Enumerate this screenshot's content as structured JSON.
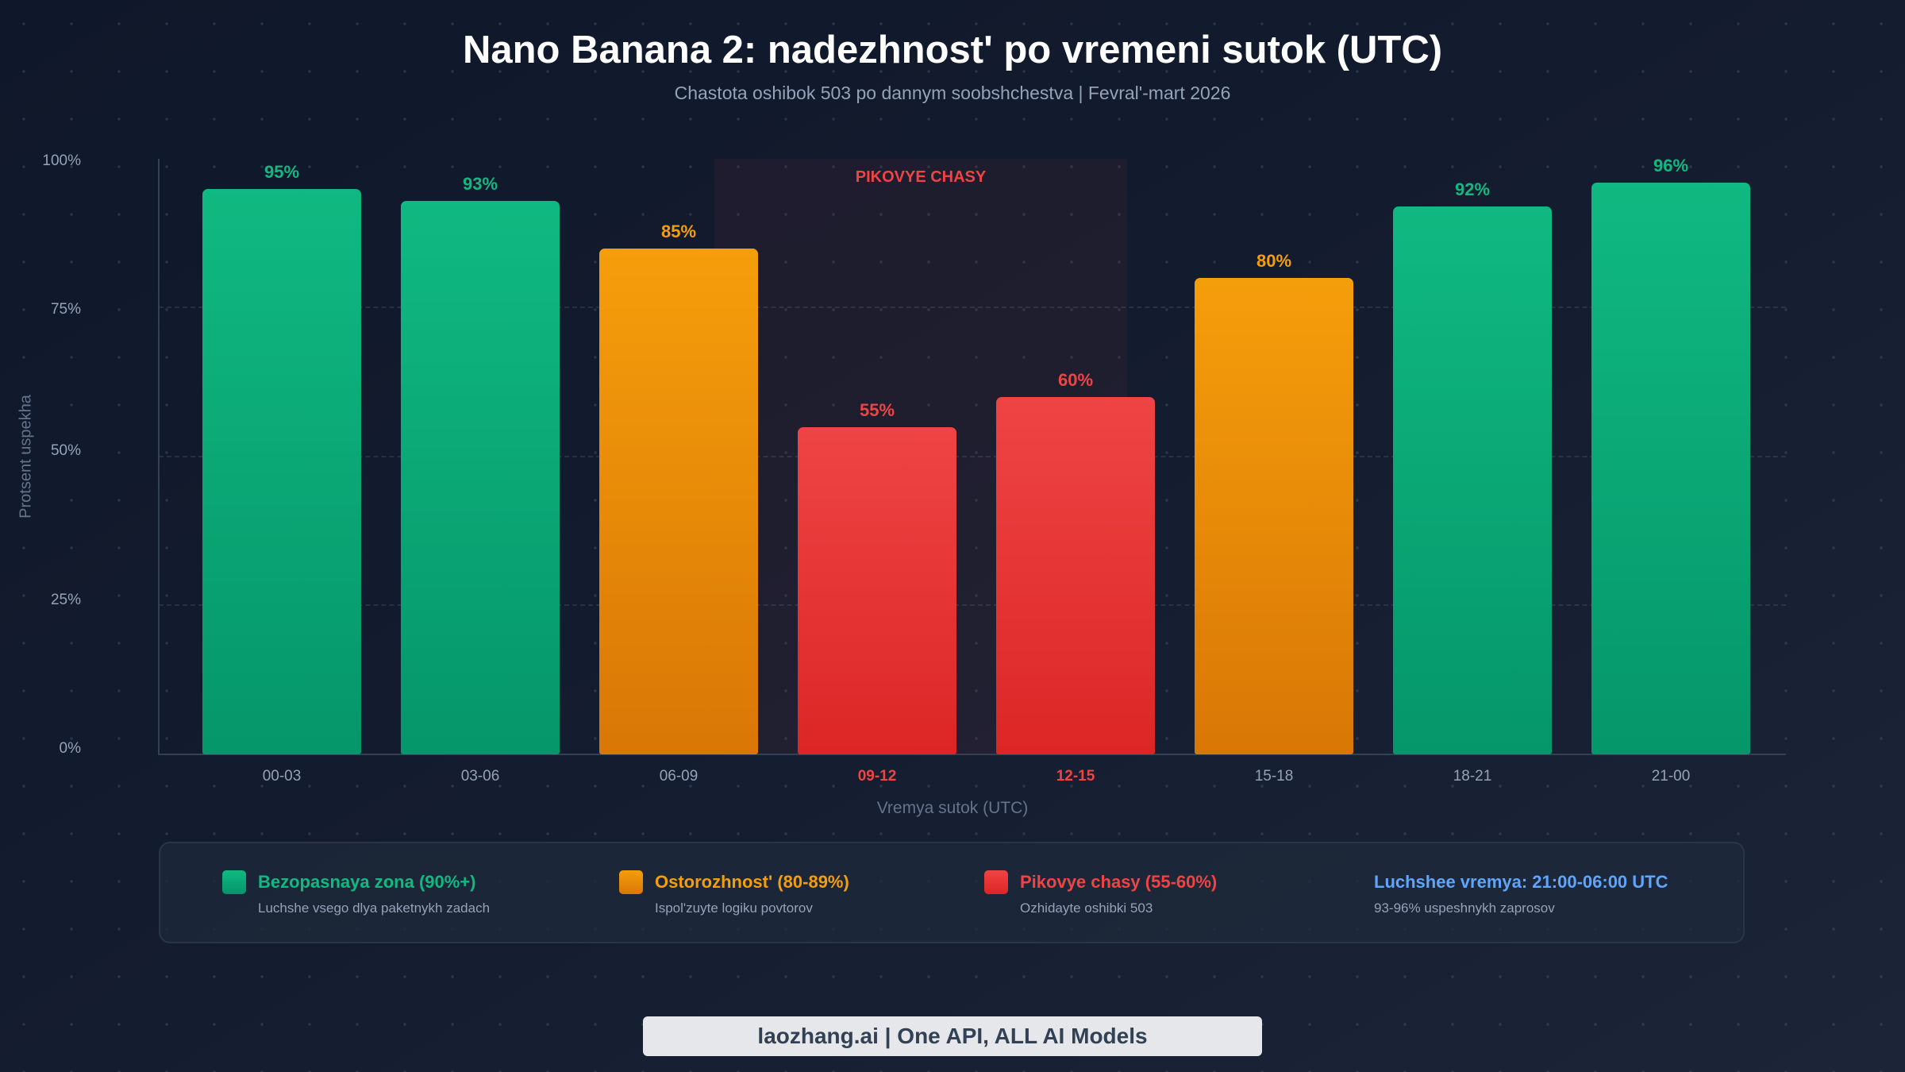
{
  "header": {
    "title": "Nano Banana 2: nadezhnost' po vremeni sutok (UTC)",
    "subtitle": "Chastota oshibok 503 po dannym soobshchestva | Fevral'-mart 2026"
  },
  "colors": {
    "safe": "#10b981",
    "caution": "#f59e0b",
    "peak": "#ef4444",
    "best_time": "#60a5fa",
    "background": "#0f172a"
  },
  "chart_data": {
    "type": "bar",
    "title": "Nano Banana 2: nadezhnost' po vremeni sutok (UTC)",
    "subtitle": "Chastota oshibok 503 po dannym soobshchestva | Fevral'-mart 2026",
    "xlabel": "Vremya sutok (UTC)",
    "ylabel": "Protsent uspekha",
    "categories": [
      "00-03",
      "03-06",
      "06-09",
      "09-12",
      "12-15",
      "15-18",
      "18-21",
      "21-00"
    ],
    "values": [
      95,
      93,
      85,
      55,
      60,
      80,
      92,
      96
    ],
    "value_labels": [
      "95%",
      "93%",
      "85%",
      "55%",
      "60%",
      "80%",
      "92%",
      "96%"
    ],
    "bar_zones": [
      "safe",
      "safe",
      "caution",
      "peak",
      "peak",
      "caution",
      "safe",
      "safe"
    ],
    "ylim": [
      0,
      100
    ],
    "yticks": [
      "0%",
      "25%",
      "50%",
      "75%",
      "100%"
    ],
    "grid": "horizontal dashed at 25/50/75",
    "annotations": [
      {
        "text": "PIKOVYE CHASY",
        "span": [
          "09-12",
          "12-15"
        ],
        "type": "shaded-region"
      }
    ],
    "legend_position": "bottom"
  },
  "legend": {
    "items": [
      {
        "title": "Bezopasnaya zona (90%+)",
        "sub": "Luchshe vsego dlya paketnykh zadach"
      },
      {
        "title": "Ostorozhnost' (80-89%)",
        "sub": "Ispol'zuyte logiku povtorov"
      },
      {
        "title": "Pikovye chasy (55-60%)",
        "sub": "Ozhidayte oshibki 503"
      },
      {
        "title": "Luchshee vremya: 21:00-06:00 UTC",
        "sub": "93-96% uspeshnykh zaprosov"
      }
    ]
  },
  "footer": {
    "text": "laozhang.ai | One API, ALL AI Models"
  }
}
